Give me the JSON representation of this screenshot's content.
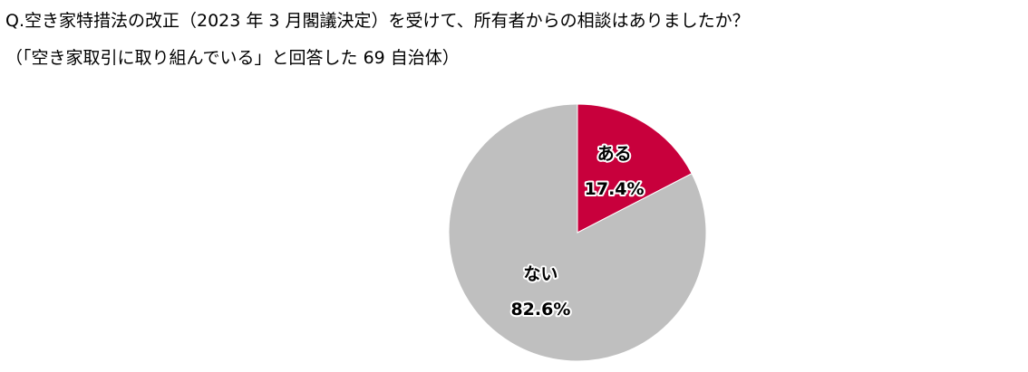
{
  "chart_data": {
    "type": "pie",
    "title": "Q.空き家特措法の改正（2023 年 3 月閣議決定）を受けて、所有者からの相談はありましたか？",
    "subtitle": "（「空き家取引に取り組んでいる」と回答した 69 自治体）",
    "categories": [
      "ある",
      "ない"
    ],
    "values": [
      17.4,
      82.6
    ],
    "value_labels": [
      "17.4%",
      "82.6%"
    ],
    "colors": [
      "#c8003c",
      "#bfbfbf"
    ]
  }
}
